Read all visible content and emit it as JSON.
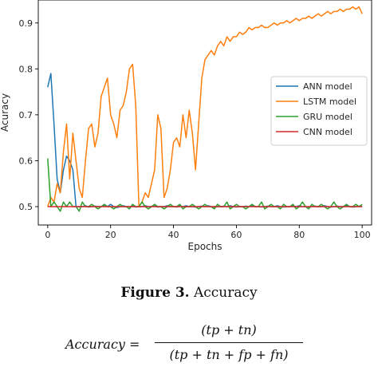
{
  "chart_data": {
    "type": "line",
    "xlabel": "Epochs",
    "ylabel": "Acuracy",
    "xlim": [
      -3,
      103
    ],
    "ylim": [
      0.46,
      0.95
    ],
    "xticks": [
      0,
      20,
      40,
      60,
      80,
      100
    ],
    "yticks": [
      0.5,
      0.6,
      0.7,
      0.8,
      0.9
    ],
    "legend_position": "center-right",
    "series": [
      {
        "name": "ANN model",
        "color": "#1f77b4",
        "x": [
          0,
          1,
          2,
          3,
          4,
          5,
          6,
          7,
          8,
          9,
          10,
          11,
          12,
          13,
          14,
          15,
          16,
          17,
          18,
          19,
          20,
          21,
          22,
          23,
          24,
          25,
          26,
          27,
          28,
          29,
          30,
          31,
          32,
          33,
          34,
          35,
          36,
          37,
          38,
          39,
          40,
          41,
          42,
          43,
          44,
          45,
          46,
          47,
          48,
          49,
          50,
          51,
          52,
          53,
          54,
          55,
          56,
          57,
          58,
          59,
          60,
          61,
          62,
          63,
          64,
          65,
          66,
          67,
          68,
          69,
          70,
          71,
          72,
          73,
          74,
          75,
          76,
          77,
          78,
          79,
          80,
          81,
          82,
          83,
          84,
          85,
          86,
          87,
          88,
          89,
          90,
          91,
          92,
          93,
          94,
          95,
          96,
          97,
          98,
          99,
          100
        ],
        "y": [
          0.76,
          0.79,
          0.68,
          0.56,
          0.53,
          0.58,
          0.61,
          0.6,
          0.58,
          0.5,
          0.5,
          0.5,
          0.502,
          0.499,
          0.5,
          0.501,
          0.5,
          0.5,
          0.503,
          0.5,
          0.505,
          0.5,
          0.498,
          0.5,
          0.502,
          0.5,
          0.5,
          0.501,
          0.499,
          0.5,
          0.5,
          0.502,
          0.5,
          0.5,
          0.501,
          0.499,
          0.5,
          0.5,
          0.502,
          0.5,
          0.5,
          0.499,
          0.501,
          0.5,
          0.502,
          0.5,
          0.5,
          0.499,
          0.5,
          0.501,
          0.5,
          0.502,
          0.5,
          0.499,
          0.5,
          0.5,
          0.501,
          0.5,
          0.502,
          0.5,
          0.499,
          0.5,
          0.5,
          0.501,
          0.5,
          0.502,
          0.5,
          0.5,
          0.499,
          0.5,
          0.501,
          0.5,
          0.5,
          0.502,
          0.5,
          0.499,
          0.5,
          0.5,
          0.501,
          0.5,
          0.502,
          0.5,
          0.5,
          0.499,
          0.5,
          0.501,
          0.5,
          0.5,
          0.502,
          0.5,
          0.499,
          0.5,
          0.501,
          0.5,
          0.5,
          0.502,
          0.5,
          0.499,
          0.5,
          0.501,
          0.5
        ]
      },
      {
        "name": "LSTM model",
        "color": "#ff7f0e",
        "x": [
          0,
          1,
          2,
          3,
          4,
          5,
          6,
          7,
          8,
          9,
          10,
          11,
          12,
          13,
          14,
          15,
          16,
          17,
          18,
          19,
          20,
          21,
          22,
          23,
          24,
          25,
          26,
          27,
          28,
          29,
          30,
          31,
          32,
          33,
          34,
          35,
          36,
          37,
          38,
          39,
          40,
          41,
          42,
          43,
          44,
          45,
          46,
          47,
          48,
          49,
          50,
          51,
          52,
          53,
          54,
          55,
          56,
          57,
          58,
          59,
          60,
          61,
          62,
          63,
          64,
          65,
          66,
          67,
          68,
          69,
          70,
          71,
          72,
          73,
          74,
          75,
          76,
          77,
          78,
          79,
          80,
          81,
          82,
          83,
          84,
          85,
          86,
          87,
          88,
          89,
          90,
          91,
          92,
          93,
          94,
          95,
          96,
          97,
          98,
          99,
          100
        ],
        "y": [
          0.5,
          0.52,
          0.51,
          0.55,
          0.53,
          0.62,
          0.68,
          0.56,
          0.66,
          0.6,
          0.54,
          0.52,
          0.6,
          0.67,
          0.68,
          0.63,
          0.66,
          0.74,
          0.76,
          0.78,
          0.7,
          0.68,
          0.65,
          0.71,
          0.72,
          0.75,
          0.8,
          0.81,
          0.72,
          0.5,
          0.51,
          0.53,
          0.52,
          0.55,
          0.58,
          0.7,
          0.67,
          0.52,
          0.54,
          0.58,
          0.64,
          0.65,
          0.63,
          0.7,
          0.65,
          0.71,
          0.66,
          0.58,
          0.68,
          0.78,
          0.82,
          0.83,
          0.84,
          0.83,
          0.85,
          0.86,
          0.85,
          0.87,
          0.86,
          0.87,
          0.87,
          0.88,
          0.875,
          0.88,
          0.89,
          0.885,
          0.89,
          0.89,
          0.895,
          0.89,
          0.89,
          0.895,
          0.9,
          0.895,
          0.9,
          0.9,
          0.905,
          0.9,
          0.905,
          0.91,
          0.905,
          0.91,
          0.91,
          0.915,
          0.91,
          0.915,
          0.92,
          0.915,
          0.92,
          0.925,
          0.92,
          0.925,
          0.925,
          0.93,
          0.925,
          0.93,
          0.93,
          0.935,
          0.93,
          0.935,
          0.92
        ]
      },
      {
        "name": "GRU model",
        "color": "#2ca02c",
        "x": [
          0,
          1,
          2,
          3,
          4,
          5,
          6,
          7,
          8,
          9,
          10,
          11,
          12,
          13,
          14,
          15,
          16,
          17,
          18,
          19,
          20,
          21,
          22,
          23,
          24,
          25,
          26,
          27,
          28,
          29,
          30,
          31,
          32,
          33,
          34,
          35,
          36,
          37,
          38,
          39,
          40,
          41,
          42,
          43,
          44,
          45,
          46,
          47,
          48,
          49,
          50,
          51,
          52,
          53,
          54,
          55,
          56,
          57,
          58,
          59,
          60,
          61,
          62,
          63,
          64,
          65,
          66,
          67,
          68,
          69,
          70,
          71,
          72,
          73,
          74,
          75,
          76,
          77,
          78,
          79,
          80,
          81,
          82,
          83,
          84,
          85,
          86,
          87,
          88,
          89,
          90,
          91,
          92,
          93,
          94,
          95,
          96,
          97,
          98,
          99,
          100
        ],
        "y": [
          0.605,
          0.5,
          0.51,
          0.5,
          0.49,
          0.51,
          0.5,
          0.51,
          0.5,
          0.5,
          0.49,
          0.51,
          0.5,
          0.5,
          0.505,
          0.5,
          0.495,
          0.5,
          0.505,
          0.5,
          0.5,
          0.495,
          0.5,
          0.505,
          0.5,
          0.5,
          0.495,
          0.505,
          0.5,
          0.5,
          0.51,
          0.5,
          0.495,
          0.5,
          0.505,
          0.5,
          0.5,
          0.495,
          0.5,
          0.505,
          0.5,
          0.5,
          0.505,
          0.495,
          0.5,
          0.5,
          0.505,
          0.5,
          0.495,
          0.5,
          0.505,
          0.5,
          0.5,
          0.495,
          0.505,
          0.5,
          0.5,
          0.51,
          0.495,
          0.5,
          0.505,
          0.5,
          0.5,
          0.495,
          0.5,
          0.505,
          0.5,
          0.5,
          0.51,
          0.495,
          0.5,
          0.505,
          0.5,
          0.5,
          0.495,
          0.505,
          0.5,
          0.5,
          0.505,
          0.495,
          0.5,
          0.51,
          0.5,
          0.495,
          0.505,
          0.5,
          0.5,
          0.505,
          0.5,
          0.495,
          0.5,
          0.51,
          0.5,
          0.495,
          0.5,
          0.505,
          0.5,
          0.5,
          0.505,
          0.5,
          0.505
        ]
      },
      {
        "name": "CNN model",
        "color": "#d62728",
        "x": [
          0,
          100
        ],
        "y": [
          0.5,
          0.5
        ]
      }
    ]
  },
  "caption": {
    "label": "Figure 3.",
    "text": " Accuracy"
  },
  "formula": {
    "lhs": "Accuracy =",
    "numerator": "(tp + tn)",
    "denominator": "(tp + tn + fp + fn)"
  }
}
